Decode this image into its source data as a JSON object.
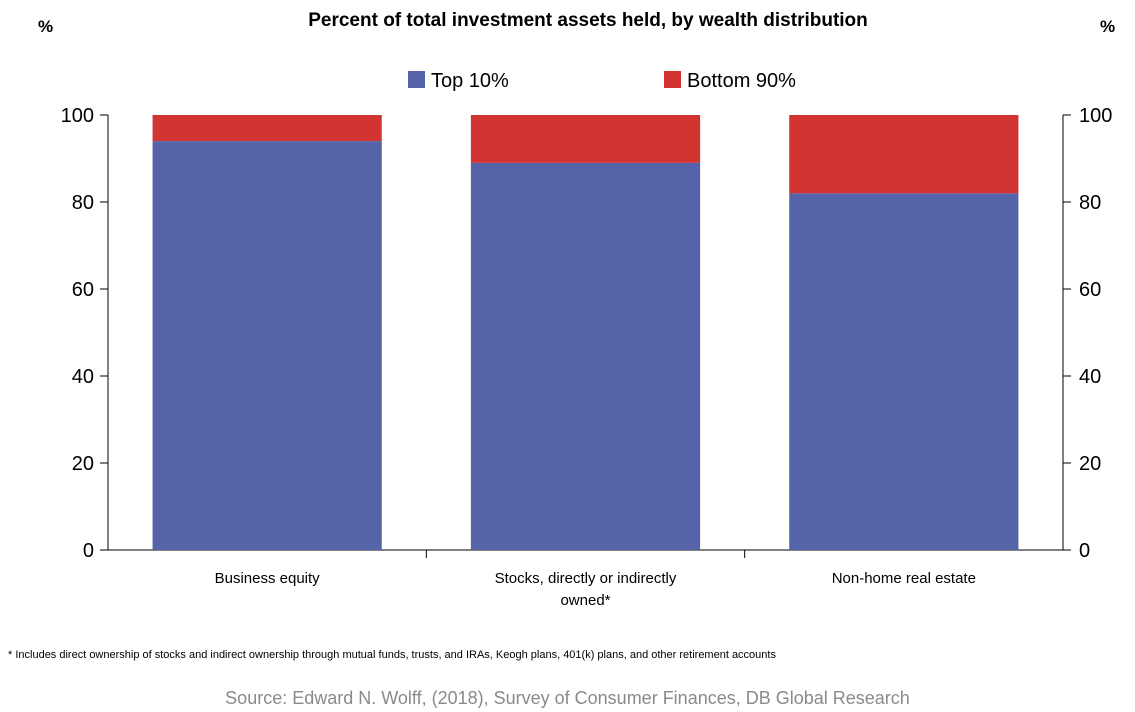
{
  "chart_data": {
    "type": "bar",
    "stacked": true,
    "title": "Percent of total investment assets held, by wealth distribution",
    "y_unit_left": "%",
    "y_unit_right": "%",
    "categories": [
      "Business equity",
      "Stocks, directly or indirectly owned*",
      "Non-home real estate"
    ],
    "category_lines": [
      [
        "Business equity"
      ],
      [
        "Stocks, directly or indirectly",
        "owned*"
      ],
      [
        "Non-home real estate"
      ]
    ],
    "series": [
      {
        "name": "Top 10%",
        "values": [
          94,
          89,
          82
        ],
        "color": "#5563a8"
      },
      {
        "name": "Bottom 90%",
        "values": [
          6,
          11,
          18
        ],
        "color": "#d23431"
      }
    ],
    "ylim": [
      0,
      100
    ],
    "yticks": [
      0,
      20,
      40,
      60,
      80,
      100
    ],
    "legend_position": "top-center",
    "grid": false
  },
  "footnote": "* Includes direct ownership of stocks and indirect ownership through mutual funds, trusts, and IRAs, Keogh plans, 401(k) plans, and other retirement accounts",
  "source": "Source: Edward N. Wolff, (2018), Survey of Consumer Finances, DB Global Research"
}
